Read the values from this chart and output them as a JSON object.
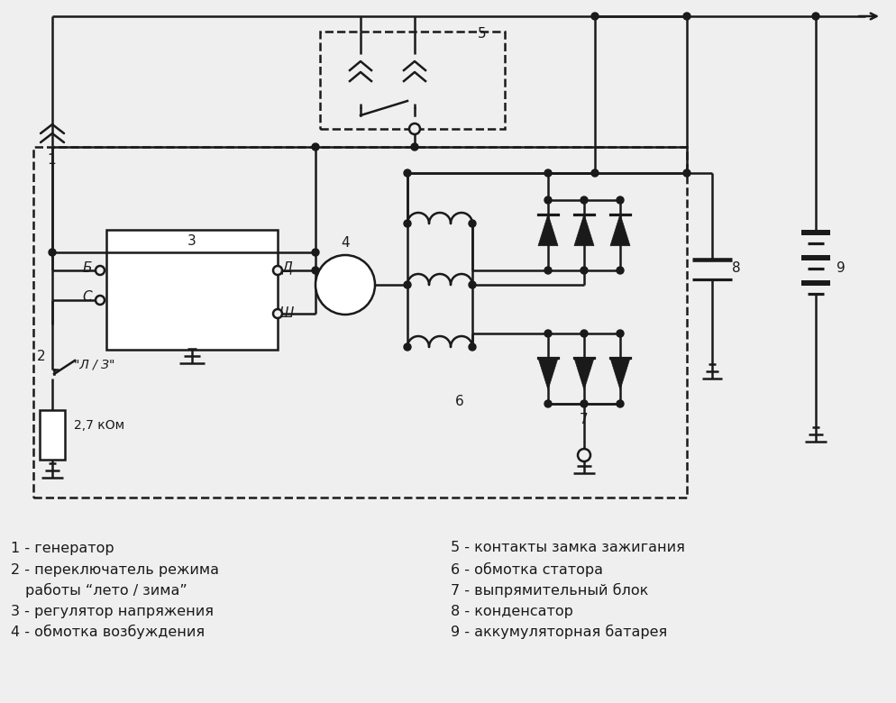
{
  "bg_color": "#efefef",
  "line_color": "#1a1a1a",
  "legend_texts_left": [
    [
      12,
      608,
      "1 - генератор"
    ],
    [
      12,
      632,
      "2 - переключатель режима"
    ],
    [
      28,
      655,
      "работы “лето / зима”"
    ],
    [
      12,
      678,
      "3 - регулятор напряжения"
    ],
    [
      12,
      701,
      "4 - обмотка возбуждения"
    ]
  ],
  "legend_texts_right": [
    [
      500,
      608,
      "5 - контакты замка зажигания"
    ],
    [
      500,
      632,
      "6 - обмотка статора"
    ],
    [
      500,
      655,
      "7 - выпрямительный блок"
    ],
    [
      500,
      678,
      "8 - конденсатор"
    ],
    [
      500,
      701,
      "9 - аккумуляторная батарея"
    ]
  ]
}
